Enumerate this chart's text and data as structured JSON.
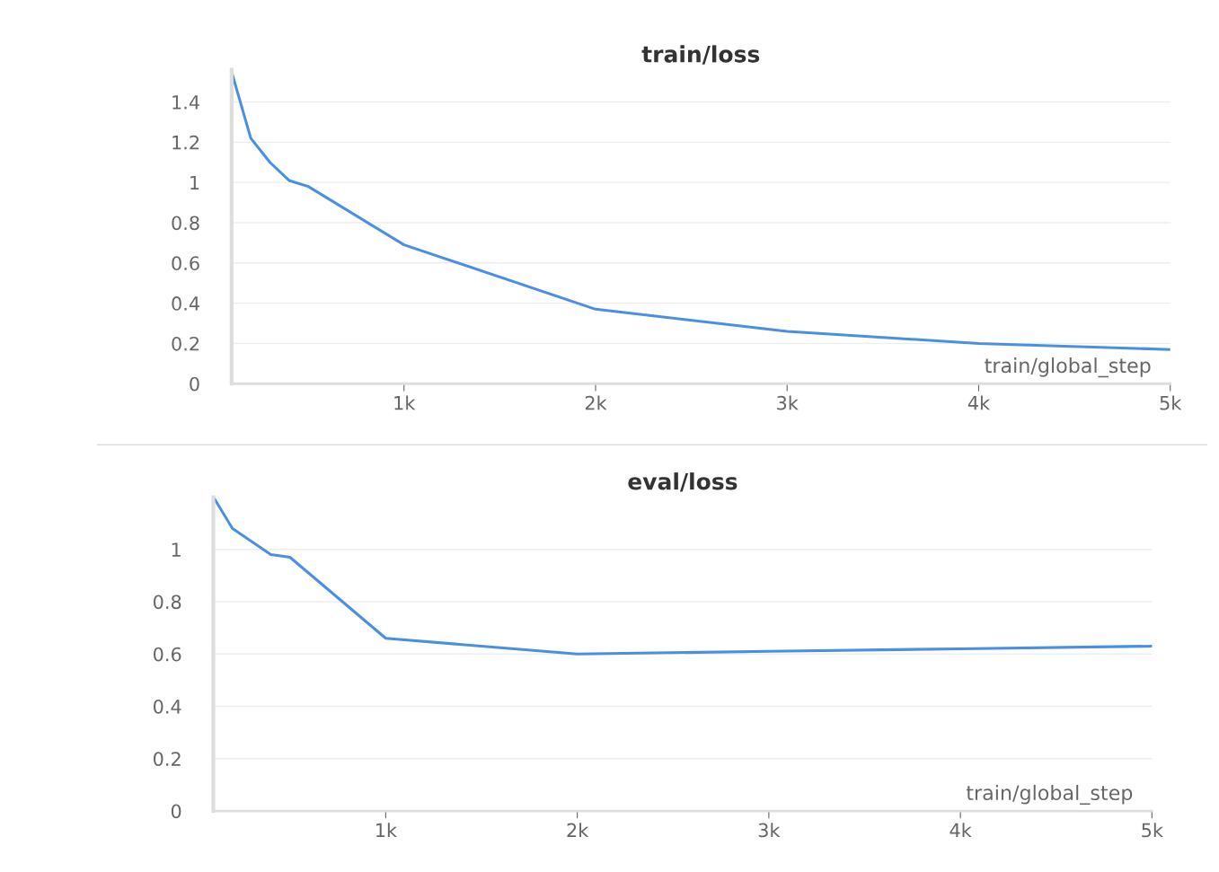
{
  "chart_data": [
    {
      "type": "line",
      "title": "train/loss",
      "xlabel": "train/global_step",
      "x": [
        100,
        200,
        300,
        400,
        500,
        1000,
        2000,
        3000,
        4000,
        5000
      ],
      "series": [
        {
          "color": "#4a90e2",
          "values": [
            1.55,
            1.22,
            1.1,
            1.01,
            0.98,
            0.69,
            0.37,
            0.26,
            0.2,
            0.17
          ]
        }
      ],
      "xlim": [
        100,
        5000
      ],
      "xticks": [
        {
          "value": 1000,
          "label": "1k"
        },
        {
          "value": 2000,
          "label": "2k"
        },
        {
          "value": 3000,
          "label": "3k"
        },
        {
          "value": 4000,
          "label": "4k"
        },
        {
          "value": 5000,
          "label": "5k"
        }
      ],
      "ylim": [
        0,
        1.56
      ],
      "yticks": [
        0,
        0.2,
        0.4,
        0.6,
        0.8,
        1,
        1.2,
        1.4
      ],
      "grid": "y"
    },
    {
      "type": "line",
      "title": "eval/loss",
      "xlabel": "train/global_step",
      "x": [
        100,
        200,
        300,
        400,
        500,
        1000,
        2000,
        3000,
        4000,
        5000
      ],
      "series": [
        {
          "color": "#4a90e2",
          "values": [
            1.2,
            1.08,
            1.03,
            0.98,
            0.97,
            0.66,
            0.6,
            0.61,
            0.62,
            0.63
          ]
        }
      ],
      "xlim": [
        100,
        5000
      ],
      "xticks": [
        {
          "value": 1000,
          "label": "1k"
        },
        {
          "value": 2000,
          "label": "2k"
        },
        {
          "value": 3000,
          "label": "3k"
        },
        {
          "value": 4000,
          "label": "4k"
        },
        {
          "value": 5000,
          "label": "5k"
        }
      ],
      "ylim": [
        0,
        1.2
      ],
      "yticks": [
        0,
        0.2,
        0.4,
        0.6,
        0.8,
        1
      ],
      "grid": "y"
    }
  ]
}
